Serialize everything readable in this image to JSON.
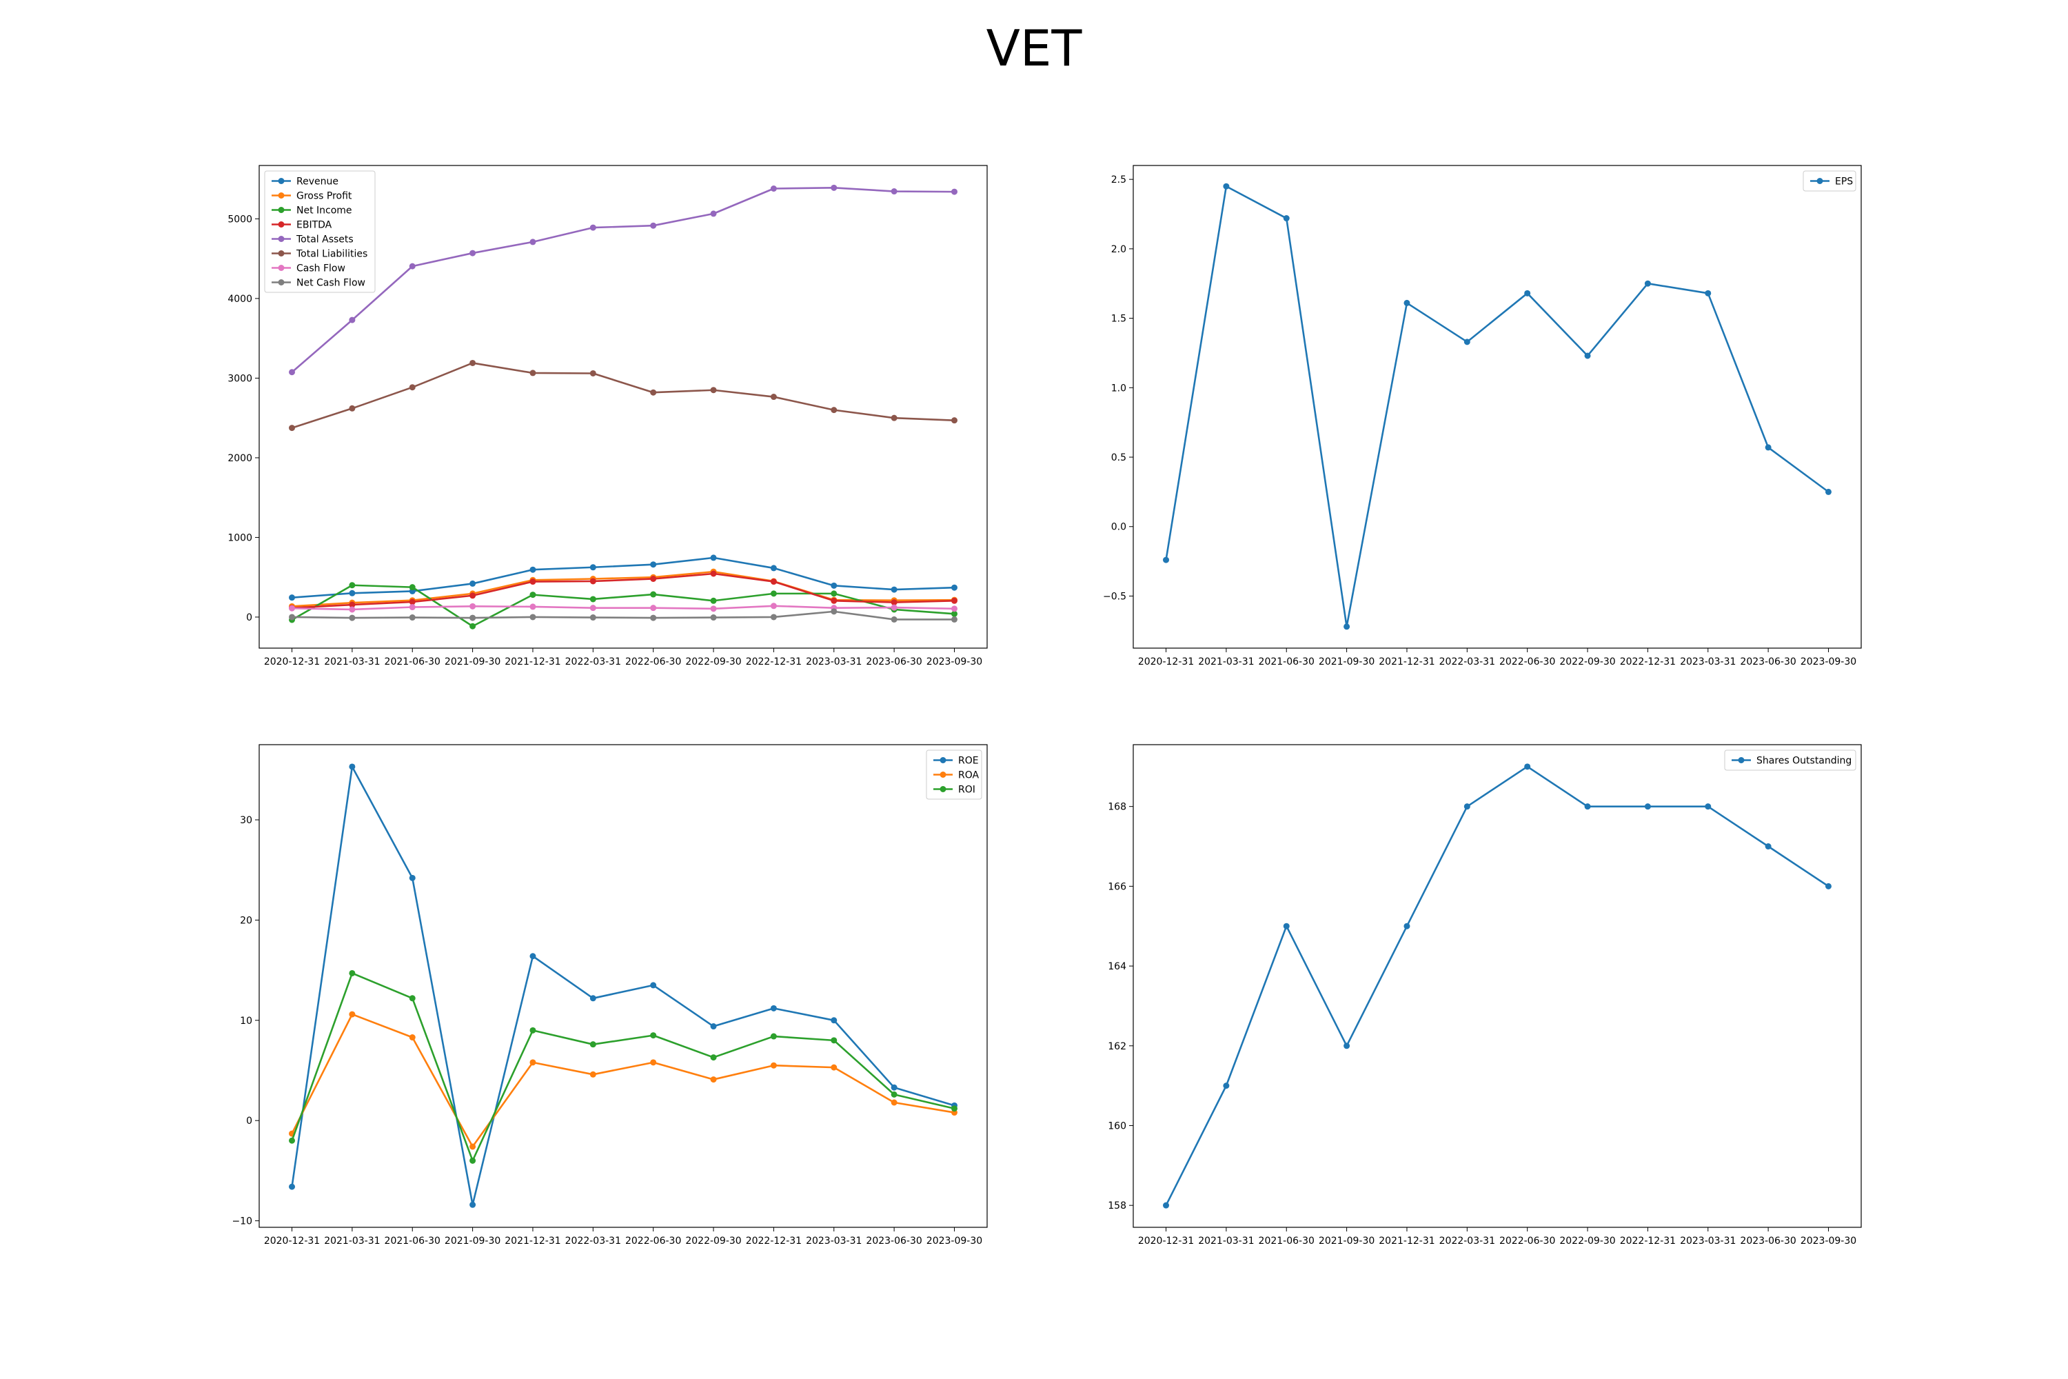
{
  "figure": {
    "title": "VET"
  },
  "chart_data": [
    {
      "type": "line",
      "x": [
        "2020-12-31",
        "2021-03-31",
        "2021-06-30",
        "2021-09-30",
        "2021-12-31",
        "2022-03-31",
        "2022-06-30",
        "2022-09-30",
        "2022-12-31",
        "2023-03-31",
        "2023-06-30",
        "2023-09-30"
      ],
      "ylim": [
        -390,
        5670
      ],
      "yticks": [
        0,
        1000,
        2000,
        3000,
        4000,
        5000
      ],
      "legend": "top-left",
      "series": [
        {
          "name": "Revenue",
          "color": "#1f77b4",
          "values": [
            245,
            300,
            325,
            420,
            595,
            625,
            660,
            745,
            615,
            395,
            345,
            370
          ]
        },
        {
          "name": "Gross Profit",
          "color": "#ff7f0e",
          "values": [
            135,
            180,
            210,
            295,
            465,
            480,
            500,
            570,
            450,
            215,
            210,
            215
          ]
        },
        {
          "name": "Net Income",
          "color": "#2ca02c",
          "values": [
            -35,
            400,
            375,
            -115,
            280,
            225,
            285,
            205,
            295,
            295,
            95,
            40
          ]
        },
        {
          "name": "EBITDA",
          "color": "#d62728",
          "values": [
            115,
            155,
            190,
            270,
            445,
            450,
            480,
            545,
            445,
            205,
            185,
            205
          ]
        },
        {
          "name": "Total Assets",
          "color": "#9467bd",
          "values": [
            3075,
            3730,
            4405,
            4570,
            4710,
            4890,
            4915,
            5065,
            5380,
            5390,
            5345,
            5340
          ]
        },
        {
          "name": "Total Liabilities",
          "color": "#8c564b",
          "values": [
            2375,
            2620,
            2885,
            3190,
            3065,
            3060,
            2820,
            2850,
            2765,
            2600,
            2500,
            2470
          ]
        },
        {
          "name": "Cash Flow",
          "color": "#e377c2",
          "values": [
            110,
            95,
            125,
            135,
            130,
            115,
            115,
            105,
            140,
            115,
            120,
            105
          ]
        },
        {
          "name": "Net Cash Flow",
          "color": "#7f7f7f",
          "values": [
            0,
            -10,
            -5,
            -10,
            0,
            -5,
            -10,
            -5,
            0,
            70,
            -30,
            -30
          ]
        }
      ]
    },
    {
      "type": "line",
      "x": [
        "2020-12-31",
        "2021-03-31",
        "2021-06-30",
        "2021-09-30",
        "2021-12-31",
        "2022-03-31",
        "2022-06-30",
        "2022-09-30",
        "2022-12-31",
        "2023-03-31",
        "2023-06-30",
        "2023-09-30"
      ],
      "ylim": [
        -0.875,
        2.6
      ],
      "yticks": [
        -0.5,
        0.0,
        0.5,
        1.0,
        1.5,
        2.0,
        2.5
      ],
      "legend": "top-right",
      "series": [
        {
          "name": "EPS",
          "color": "#1f77b4",
          "values": [
            -0.24,
            2.45,
            2.22,
            -0.72,
            1.61,
            1.33,
            1.68,
            1.23,
            1.75,
            1.68,
            0.57,
            0.25
          ]
        }
      ]
    },
    {
      "type": "line",
      "x": [
        "2020-12-31",
        "2021-03-31",
        "2021-06-30",
        "2021-09-30",
        "2021-12-31",
        "2022-03-31",
        "2022-06-30",
        "2022-09-30",
        "2022-12-31",
        "2023-03-31",
        "2023-06-30",
        "2023-09-30"
      ],
      "ylim": [
        -10.65,
        37.5
      ],
      "yticks": [
        -10,
        0,
        10,
        20,
        30
      ],
      "legend": "top-right",
      "series": [
        {
          "name": "ROE",
          "color": "#1f77b4",
          "values": [
            -6.6,
            35.3,
            24.2,
            -8.4,
            16.4,
            12.2,
            13.5,
            9.4,
            11.2,
            10.0,
            3.3,
            1.5
          ]
        },
        {
          "name": "ROA",
          "color": "#ff7f0e",
          "values": [
            -1.3,
            10.6,
            8.3,
            -2.6,
            5.8,
            4.6,
            5.8,
            4.1,
            5.5,
            5.3,
            1.8,
            0.8
          ]
        },
        {
          "name": "ROI",
          "color": "#2ca02c",
          "values": [
            -2.0,
            14.7,
            12.2,
            -4.0,
            9.0,
            7.6,
            8.5,
            6.3,
            8.4,
            8.0,
            2.6,
            1.2
          ]
        }
      ]
    },
    {
      "type": "line",
      "x": [
        "2020-12-31",
        "2021-03-31",
        "2021-06-30",
        "2021-09-30",
        "2021-12-31",
        "2022-03-31",
        "2022-06-30",
        "2022-09-30",
        "2022-12-31",
        "2023-03-31",
        "2023-06-30",
        "2023-09-30"
      ],
      "ylim": [
        157.45,
        169.55
      ],
      "yticks": [
        158,
        160,
        162,
        164,
        166,
        168
      ],
      "legend": "top-right",
      "series": [
        {
          "name": "Shares Outstanding",
          "color": "#1f77b4",
          "values": [
            158,
            161,
            165,
            162,
            165,
            168,
            169,
            168,
            168,
            168,
            167,
            166
          ]
        }
      ]
    }
  ]
}
